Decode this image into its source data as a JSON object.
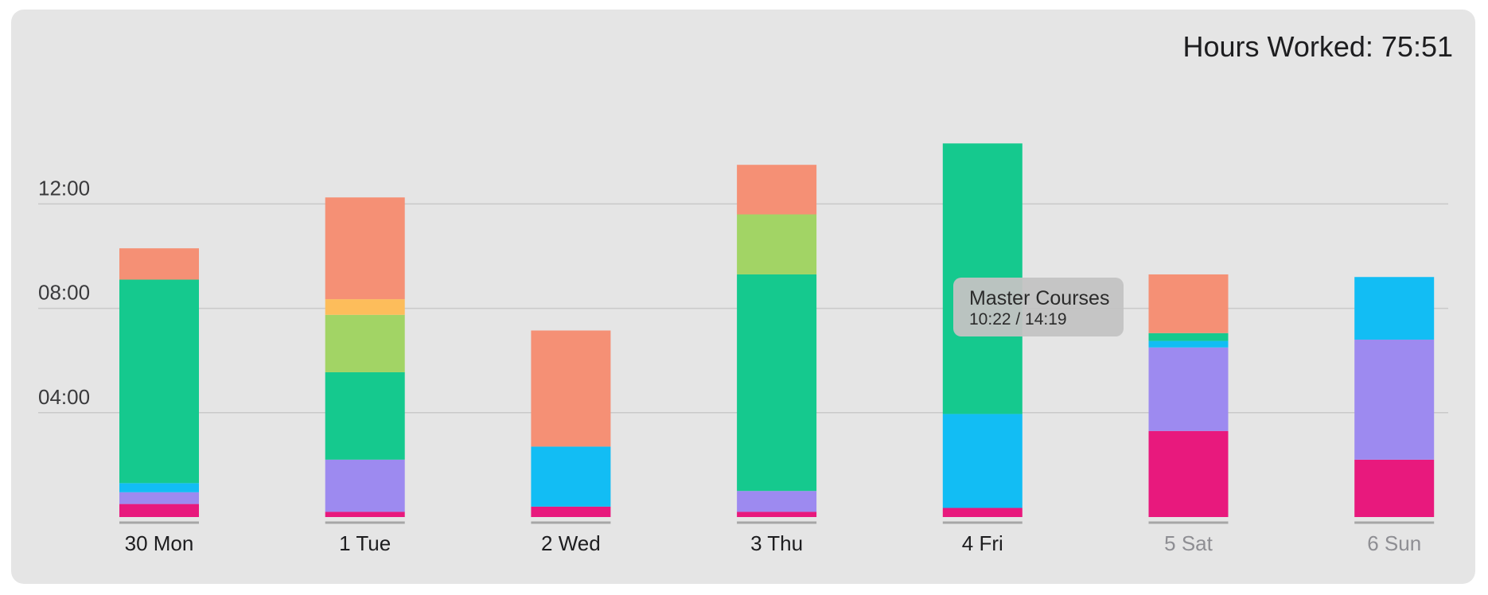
{
  "header": {
    "hours_label": "Hours Worked:",
    "hours_value": "75:51"
  },
  "tooltip": {
    "title": "Master Courses",
    "value": "10:22 / 14:19"
  },
  "colors": {
    "magenta": "#e8197d",
    "purple": "#9d8af0",
    "cyan": "#12bdf4",
    "green": "#15c98e",
    "lime": "#a2d465",
    "yellow": "#fdbd5b",
    "salmon": "#f59075",
    "grid": "#c9c9c9",
    "background": "#e5e5e5"
  },
  "chart_data": {
    "type": "bar",
    "stacked": true,
    "y_tick_labels": [
      "04:00",
      "08:00",
      "12:00"
    ],
    "y_ticks_hours": [
      4,
      8,
      12
    ],
    "ylim_hours": [
      0,
      15
    ],
    "grid": true,
    "categories": [
      "30 Mon",
      "1 Tue",
      "2 Wed",
      "3 Thu",
      "4 Fri",
      "5 Sat",
      "6 Sun"
    ],
    "dimmed_categories": [
      "5 Sat",
      "6 Sun"
    ],
    "series": [
      {
        "color": "#e8197d",
        "values": [
          0.5,
          0.2,
          0.4,
          0.2,
          0.35,
          3.3,
          2.2
        ]
      },
      {
        "color": "#9d8af0",
        "values": [
          0.45,
          2.0,
          0,
          0.8,
          0,
          3.2,
          4.6
        ]
      },
      {
        "color": "#12bdf4",
        "values": [
          0.35,
          0,
          2.3,
          0,
          3.6,
          0.25,
          2.4
        ]
      },
      {
        "color": "#15c98e",
        "values": [
          7.8,
          3.35,
          0,
          8.3,
          10.37,
          0.3,
          0
        ]
      },
      {
        "color": "#a2d465",
        "values": [
          0,
          2.2,
          0,
          2.3,
          0,
          0,
          0
        ]
      },
      {
        "color": "#fdbd5b",
        "values": [
          0,
          0.6,
          0,
          0,
          0,
          0,
          0
        ]
      },
      {
        "color": "#f59075",
        "values": [
          1.2,
          3.9,
          4.45,
          1.9,
          0,
          2.25,
          0
        ]
      }
    ]
  }
}
